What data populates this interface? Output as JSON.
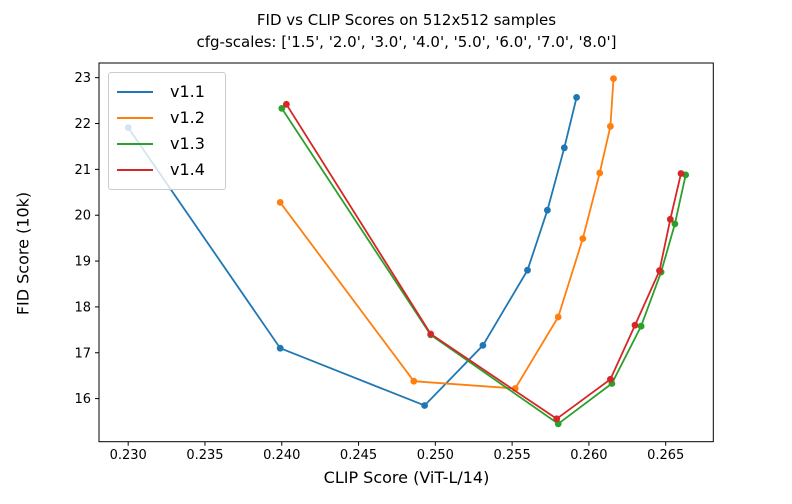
{
  "chart_data": {
    "type": "line",
    "title": "FID vs CLIP Scores on 512x512 samples",
    "subtitle": "cfg-scales: ['1.5', '2.0', '3.0', '4.0', '5.0', '6.0', '7.0', '8.0']",
    "xlabel": "CLIP Score (ViT-L/14)",
    "ylabel": "FID Score (10k)",
    "xlim": [
      0.2281,
      0.2681
    ],
    "ylim": [
      15.06,
      23.32
    ],
    "xticks": [
      0.23,
      0.235,
      0.24,
      0.245,
      0.25,
      0.255,
      0.26,
      0.265
    ],
    "xtick_labels": [
      "0.230",
      "0.235",
      "0.240",
      "0.245",
      "0.250",
      "0.255",
      "0.260",
      "0.265"
    ],
    "yticks": [
      16,
      17,
      18,
      19,
      20,
      21,
      22,
      23
    ],
    "ytick_labels": [
      "16",
      "17",
      "18",
      "19",
      "20",
      "21",
      "22",
      "23"
    ],
    "grid": false,
    "legend_position": "upper-left",
    "cfg_scales": [
      "1.5",
      "2.0",
      "3.0",
      "4.0",
      "5.0",
      "6.0",
      "7.0",
      "8.0"
    ],
    "series": [
      {
        "name": "v1.1",
        "color": "#1f77b4",
        "x": [
          0.23,
          0.2399,
          0.2493,
          0.2531,
          0.256,
          0.2573,
          0.2584,
          0.2592
        ],
        "y": [
          21.91,
          17.1,
          15.85,
          17.16,
          18.8,
          20.11,
          21.47,
          22.57
        ]
      },
      {
        "name": "v1.2",
        "color": "#ff7f0e",
        "x": [
          0.2399,
          0.2486,
          0.2552,
          0.258,
          0.2596,
          0.2607,
          0.2614,
          0.2616
        ],
        "y": [
          20.28,
          16.38,
          16.22,
          17.78,
          19.49,
          20.92,
          21.94,
          22.98
        ]
      },
      {
        "name": "v1.3",
        "color": "#2ca02c",
        "x": [
          0.24,
          0.2497,
          0.258,
          0.2615,
          0.2634,
          0.2647,
          0.2656,
          0.2663
        ],
        "y": [
          22.33,
          17.39,
          15.45,
          16.33,
          17.58,
          18.76,
          19.81,
          20.88
        ]
      },
      {
        "name": "v1.4",
        "color": "#d62728",
        "x": [
          0.2403,
          0.2497,
          0.2579,
          0.2614,
          0.263,
          0.2646,
          0.2653,
          0.266
        ],
        "y": [
          22.42,
          17.41,
          15.56,
          16.42,
          17.6,
          18.79,
          19.91,
          20.91
        ]
      }
    ]
  },
  "colors": {
    "background": "#ffffff",
    "spine": "#000000",
    "tick_text": "#000000",
    "legend_border": "#cccccc"
  }
}
